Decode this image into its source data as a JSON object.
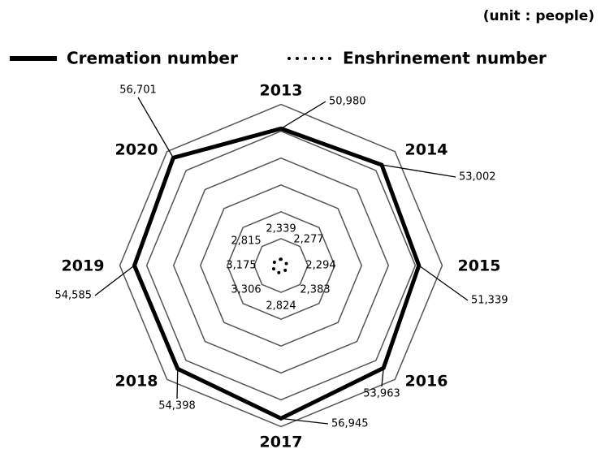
{
  "chart_data": {
    "type": "radar",
    "unit": "(unit : people)",
    "categories": [
      "2013",
      "2014",
      "2015",
      "2016",
      "2017",
      "2018",
      "2019",
      "2020"
    ],
    "series": [
      {
        "name": "Cremation number",
        "color": "#000000",
        "style": "solid",
        "values": [
          50980,
          53002,
          51339,
          53963,
          56945,
          54398,
          54585,
          56701
        ],
        "value_labels": [
          "50,980",
          "53,002",
          "51,339",
          "53,963",
          "56,945",
          "54,398",
          "54,585",
          "56,701"
        ]
      },
      {
        "name": "Enshrinement number",
        "color": "#000000",
        "style": "dotted",
        "values": [
          2339,
          2277,
          2294,
          2383,
          2824,
          3306,
          3175,
          2815
        ],
        "value_labels": [
          "2,339",
          "2,277",
          "2,294",
          "2,383",
          "2,824",
          "3,306",
          "3,175",
          "2,815"
        ]
      }
    ],
    "ylim": [
      0,
      65000
    ],
    "yticks": [
      10000,
      20000,
      30000,
      40000,
      50000,
      60000
    ],
    "grid": true
  }
}
